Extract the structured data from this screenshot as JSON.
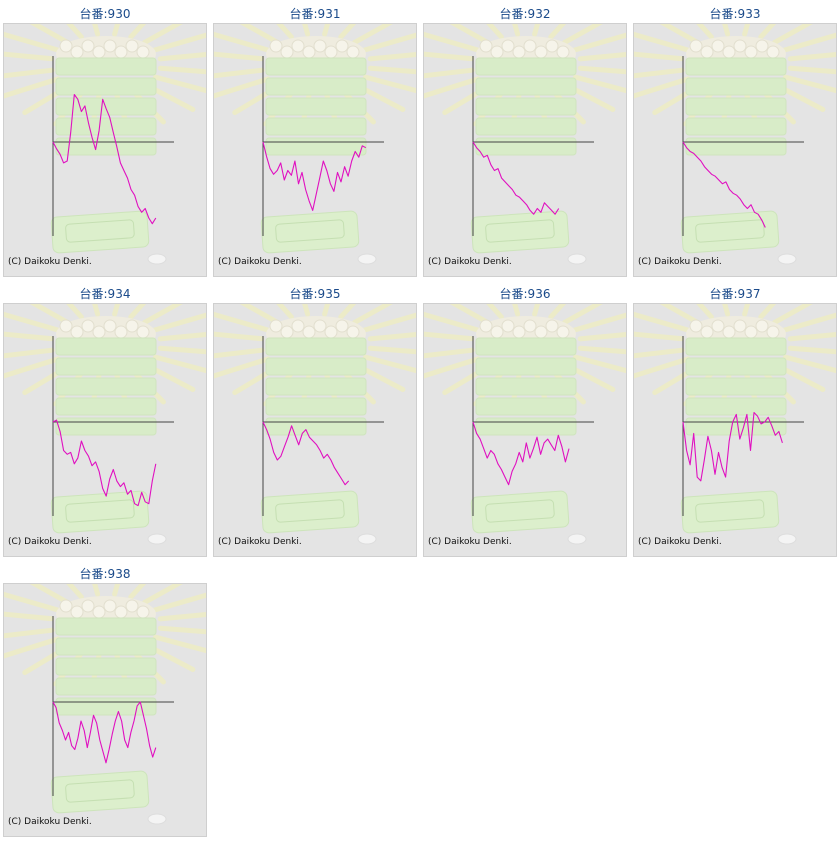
{
  "panels": [
    {
      "title": "台番:930",
      "copyright": "(C) Daikoku Denki."
    },
    {
      "title": "台番:931",
      "copyright": "(C) Daikoku Denki."
    },
    {
      "title": "台番:932",
      "copyright": "(C) Daikoku Denki."
    },
    {
      "title": "台番:933",
      "copyright": "(C) Daikoku Denki."
    },
    {
      "title": "台番:934",
      "copyright": "(C) Daikoku Denki."
    },
    {
      "title": "台番:935",
      "copyright": "(C) Daikoku Denki."
    },
    {
      "title": "台番:936",
      "copyright": "(C) Daikoku Denki."
    },
    {
      "title": "台番:937",
      "copyright": "(C) Daikoku Denki."
    },
    {
      "title": "台番:938",
      "copyright": "(C) Daikoku Denki."
    }
  ],
  "chart_data": [
    {
      "type": "line",
      "title": "台番:930",
      "xlim": [
        0,
        100
      ],
      "ylim": [
        -1,
        1
      ],
      "series": [
        {
          "color": "#e010c0",
          "values": [
            0,
            -0.07,
            -0.13,
            -0.22,
            -0.2,
            0.1,
            0.5,
            0.45,
            0.32,
            0.38,
            0.2,
            0.05,
            -0.08,
            0.12,
            0.45,
            0.35,
            0.26,
            0.1,
            -0.05,
            -0.22,
            -0.3,
            -0.38,
            -0.5,
            -0.56,
            -0.68,
            -0.74,
            -0.7,
            -0.8,
            -0.86,
            -0.8
          ]
        }
      ]
    },
    {
      "type": "line",
      "title": "台番:931",
      "xlim": [
        0,
        100
      ],
      "ylim": [
        -1,
        1
      ],
      "series": [
        {
          "color": "#e010c0",
          "values": [
            0,
            -0.15,
            -0.28,
            -0.34,
            -0.3,
            -0.22,
            -0.4,
            -0.3,
            -0.35,
            -0.2,
            -0.44,
            -0.32,
            -0.5,
            -0.62,
            -0.72,
            -0.55,
            -0.38,
            -0.2,
            -0.3,
            -0.44,
            -0.52,
            -0.32,
            -0.42,
            -0.26,
            -0.36,
            -0.2,
            -0.1,
            -0.16,
            -0.04,
            -0.06
          ]
        }
      ]
    },
    {
      "type": "line",
      "title": "台番:932",
      "xlim": [
        0,
        100
      ],
      "ylim": [
        -1,
        1
      ],
      "series": [
        {
          "color": "#e010c0",
          "values": [
            0,
            -0.06,
            -0.1,
            -0.16,
            -0.14,
            -0.24,
            -0.3,
            -0.28,
            -0.38,
            -0.42,
            -0.46,
            -0.5,
            -0.56,
            -0.58,
            -0.62,
            -0.66,
            -0.72,
            -0.76,
            -0.7,
            -0.74,
            -0.64,
            -0.68,
            -0.72,
            -0.76,
            -0.7
          ]
        }
      ]
    },
    {
      "type": "line",
      "title": "台番:933",
      "xlim": [
        0,
        100
      ],
      "ylim": [
        -1,
        1
      ],
      "series": [
        {
          "color": "#e010c0",
          "values": [
            0,
            -0.06,
            -0.1,
            -0.12,
            -0.16,
            -0.2,
            -0.26,
            -0.3,
            -0.34,
            -0.36,
            -0.4,
            -0.44,
            -0.42,
            -0.5,
            -0.54,
            -0.56,
            -0.6,
            -0.66,
            -0.7,
            -0.66,
            -0.74,
            -0.76,
            -0.82,
            -0.9
          ]
        }
      ]
    },
    {
      "type": "line",
      "title": "台番:934",
      "xlim": [
        0,
        100
      ],
      "ylim": [
        -1,
        1
      ],
      "series": [
        {
          "color": "#e010c0",
          "values": [
            0,
            0.02,
            -0.1,
            -0.3,
            -0.34,
            -0.32,
            -0.44,
            -0.38,
            -0.2,
            -0.3,
            -0.36,
            -0.46,
            -0.42,
            -0.52,
            -0.7,
            -0.78,
            -0.6,
            -0.5,
            -0.62,
            -0.68,
            -0.64,
            -0.76,
            -0.72,
            -0.86,
            -0.88,
            -0.74,
            -0.84,
            -0.86,
            -0.62,
            -0.44
          ]
        }
      ]
    },
    {
      "type": "line",
      "title": "台番:935",
      "xlim": [
        0,
        100
      ],
      "ylim": [
        -1,
        1
      ],
      "series": [
        {
          "color": "#e010c0",
          "values": [
            0,
            -0.08,
            -0.18,
            -0.32,
            -0.4,
            -0.36,
            -0.26,
            -0.16,
            -0.04,
            -0.14,
            -0.24,
            -0.12,
            -0.08,
            -0.16,
            -0.2,
            -0.24,
            -0.3,
            -0.38,
            -0.34,
            -0.4,
            -0.48,
            -0.54,
            -0.6,
            -0.66,
            -0.62
          ]
        }
      ]
    },
    {
      "type": "line",
      "title": "台番:936",
      "xlim": [
        0,
        100
      ],
      "ylim": [
        -1,
        1
      ],
      "series": [
        {
          "color": "#e010c0",
          "values": [
            0,
            -0.12,
            -0.18,
            -0.28,
            -0.38,
            -0.3,
            -0.34,
            -0.44,
            -0.5,
            -0.58,
            -0.66,
            -0.52,
            -0.44,
            -0.32,
            -0.42,
            -0.22,
            -0.38,
            -0.28,
            -0.16,
            -0.34,
            -0.22,
            -0.18,
            -0.24,
            -0.3,
            -0.14,
            -0.26,
            -0.42,
            -0.28
          ]
        }
      ]
    },
    {
      "type": "line",
      "title": "台番:937",
      "xlim": [
        0,
        100
      ],
      "ylim": [
        -1,
        1
      ],
      "series": [
        {
          "color": "#e010c0",
          "values": [
            0,
            -0.3,
            -0.45,
            -0.12,
            -0.58,
            -0.62,
            -0.4,
            -0.15,
            -0.3,
            -0.55,
            -0.32,
            -0.48,
            -0.58,
            -0.2,
            0.0,
            0.08,
            -0.18,
            -0.06,
            0.08,
            -0.3,
            0.1,
            0.06,
            -0.02,
            0.0,
            0.05,
            -0.04,
            -0.14,
            -0.1,
            -0.22
          ]
        }
      ]
    },
    {
      "type": "line",
      "title": "台番:938",
      "xlim": [
        0,
        100
      ],
      "ylim": [
        -1,
        1
      ],
      "series": [
        {
          "color": "#e010c0",
          "values": [
            0,
            -0.06,
            -0.22,
            -0.3,
            -0.4,
            -0.32,
            -0.46,
            -0.5,
            -0.38,
            -0.2,
            -0.3,
            -0.48,
            -0.32,
            -0.14,
            -0.22,
            -0.4,
            -0.52,
            -0.64,
            -0.5,
            -0.34,
            -0.2,
            -0.1,
            -0.2,
            -0.4,
            -0.48,
            -0.32,
            -0.2,
            -0.04,
            0.0,
            -0.14,
            -0.28,
            -0.46,
            -0.58,
            -0.48
          ]
        }
      ]
    }
  ]
}
